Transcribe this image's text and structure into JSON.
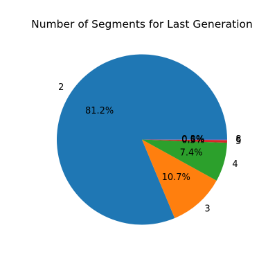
{
  "chart_data": {
    "type": "pie",
    "title": "Number of Segments for Last Generation",
    "categories": [
      "2",
      "3",
      "4",
      "5",
      "6",
      "8"
    ],
    "values": [
      81.2,
      10.7,
      7.4,
      0.5,
      0.1,
      0.0
    ],
    "pct_labels": [
      "81.2%",
      "10.7%",
      "7.4%",
      "0.5%",
      "0.1%",
      "0.0%"
    ],
    "colors": [
      "#1f77b4",
      "#ff7f0e",
      "#2ca02c",
      "#d62728",
      "#9467bd",
      "#8c564b"
    ],
    "start_angle_deg": 0,
    "direction": "counterclockwise",
    "legend": "none"
  }
}
